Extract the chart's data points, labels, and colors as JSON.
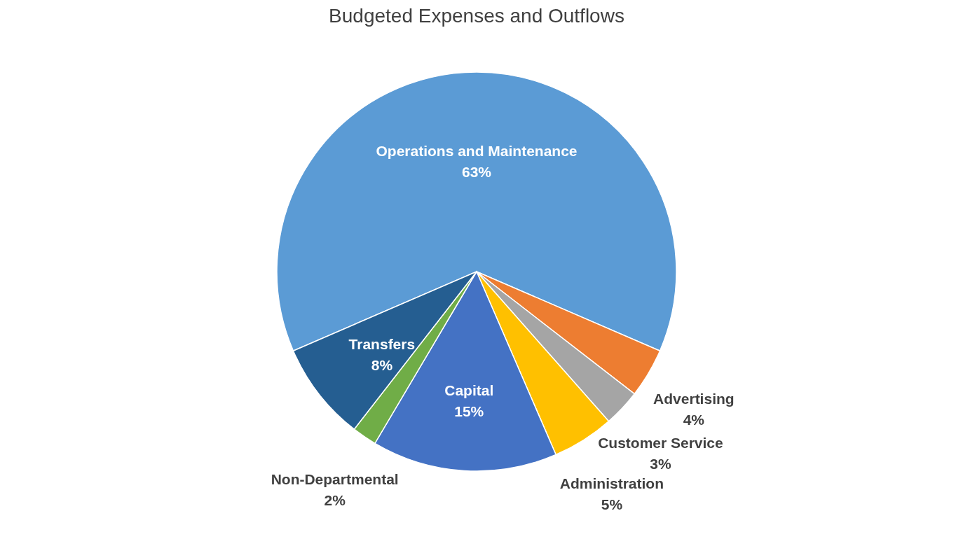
{
  "chart_data": {
    "type": "pie",
    "title": "Budgeted Expenses and Outflows",
    "categories": [
      "Operations and Maintenance",
      "Advertising",
      "Customer Service",
      "Administration",
      "Capital",
      "Non-Departmental",
      "Transfers"
    ],
    "values": [
      63,
      4,
      3,
      5,
      15,
      2,
      8
    ],
    "value_labels": [
      "63%",
      "4%",
      "3%",
      "5%",
      "15%",
      "2%",
      "8%"
    ],
    "colors": [
      "#5b9bd5",
      "#ed7d31",
      "#a5a5a5",
      "#ffc000",
      "#4472c4",
      "#70ad47",
      "#255e91"
    ],
    "legend": false
  }
}
